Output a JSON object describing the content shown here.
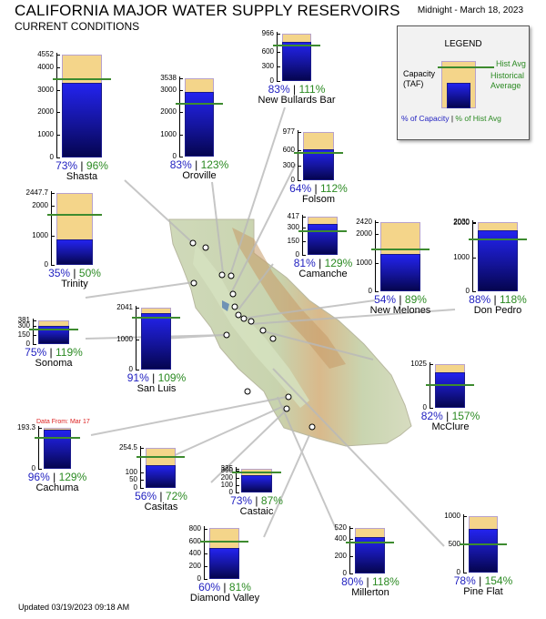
{
  "header": {
    "title": "CALIFORNIA MAJOR WATER SUPPLY RESERVOIRS",
    "subtitle": "CURRENT CONDITIONS",
    "date": "Midnight - March 18, 2023"
  },
  "footer": {
    "updated": "Updated 03/19/2023 09:18 AM"
  },
  "legend": {
    "title": "LEGEND",
    "capacity_label": "Capacity (TAF)",
    "hist_avg_label": "Hist Avg",
    "historical_average_label": "Historical Average",
    "pct_capacity_label": "% of Capacity",
    "separator": "|",
    "pct_hist_label": "% of Hist Avg"
  },
  "colors": {
    "capacity_fill": "#f4d58a",
    "storage_fill": "#1a1aa8",
    "hist_avg_line": "#3d8b2f",
    "pct_capacity_text": "#1f1fc0",
    "pct_hist_text": "#2b8a22"
  },
  "chart_data": {
    "type": "bar",
    "units": "TAF",
    "reservoirs": [
      {
        "name": "Shasta",
        "capacity": 4552,
        "storage": 3323,
        "hist_avg": 3461,
        "pct_capacity": "73%",
        "pct_hist": "96%",
        "ticks": [
          "4552",
          "4000",
          "3000",
          "2000",
          "1000",
          "0"
        ]
      },
      {
        "name": "Oroville",
        "capacity": 3538,
        "storage": 2937,
        "hist_avg": 2388,
        "pct_capacity": "83%",
        "pct_hist": "123%",
        "ticks": [
          "3538",
          "3000",
          "2000",
          "1000",
          "0"
        ]
      },
      {
        "name": "New Bullards Bar",
        "capacity": 966,
        "storage": 802,
        "hist_avg": 722,
        "pct_capacity": "83%",
        "pct_hist": "111%",
        "ticks": [
          "966",
          "600",
          "300",
          "0"
        ]
      },
      {
        "name": "Folsom",
        "capacity": 977,
        "storage": 625,
        "hist_avg": 558,
        "pct_capacity": "64%",
        "pct_hist": "112%",
        "ticks": [
          "977",
          "600",
          "300",
          "0"
        ]
      },
      {
        "name": "Trinity",
        "capacity": 2447.7,
        "storage": 857,
        "hist_avg": 1713,
        "pct_capacity": "35%",
        "pct_hist": "50%",
        "ticks": [
          "2447.7",
          "2000",
          "1000",
          "0"
        ]
      },
      {
        "name": "Camanche",
        "capacity": 417,
        "storage": 338,
        "hist_avg": 262,
        "pct_capacity": "81%",
        "pct_hist": "129%",
        "ticks": [
          "417",
          "300",
          "150",
          "0"
        ]
      },
      {
        "name": "New Melones",
        "capacity": 2420,
        "storage": 1307,
        "hist_avg": 1469,
        "pct_capacity": "54%",
        "pct_hist": "89%",
        "ticks": [
          "2420",
          "2000",
          "1000",
          "0"
        ]
      },
      {
        "name": "Don Pedro",
        "capacity": 2030,
        "storage": 1786,
        "hist_avg": 1514,
        "pct_capacity": "88%",
        "pct_hist": "118%",
        "ticks": [
          "2030",
          "2000",
          "1000",
          "0"
        ]
      },
      {
        "name": "Sonoma",
        "capacity": 381,
        "storage": 286,
        "hist_avg": 240,
        "pct_capacity": "75%",
        "pct_hist": "119%",
        "ticks": [
          "381",
          "300",
          "150",
          "0"
        ]
      },
      {
        "name": "San Luis",
        "capacity": 2041,
        "storage": 1857,
        "hist_avg": 1704,
        "pct_capacity": "91%",
        "pct_hist": "109%",
        "ticks": [
          "2041",
          "1000",
          "0"
        ]
      },
      {
        "name": "McClure",
        "capacity": 1025,
        "storage": 841,
        "hist_avg": 535,
        "pct_capacity": "82%",
        "pct_hist": "157%",
        "ticks": [
          "1025",
          "0"
        ]
      },
      {
        "name": "Cachuma",
        "capacity": 193.3,
        "storage": 186,
        "hist_avg": 144,
        "pct_capacity": "96%",
        "pct_hist": "129%",
        "ticks": [
          "193.3",
          "0"
        ],
        "note": "Data From: Mar 17"
      },
      {
        "name": "Casitas",
        "capacity": 254.5,
        "storage": 143,
        "hist_avg": 198,
        "pct_capacity": "56%",
        "pct_hist": "72%",
        "ticks": [
          "254.5",
          "100",
          "50",
          "0"
        ]
      },
      {
        "name": "Castaic",
        "capacity": 325,
        "storage": 237,
        "hist_avg": 273,
        "pct_capacity": "73%",
        "pct_hist": "87%",
        "ticks": [
          "325",
          "300",
          "200",
          "100",
          "0"
        ]
      },
      {
        "name": "Diamond Valley",
        "capacity": 810,
        "storage": 486,
        "hist_avg": 600,
        "pct_capacity": "60%",
        "pct_hist": "81%",
        "ticks": [
          "800",
          "600",
          "400",
          "200",
          "0"
        ]
      },
      {
        "name": "Millerton",
        "capacity": 520,
        "storage": 416,
        "hist_avg": 352,
        "pct_capacity": "80%",
        "pct_hist": "118%",
        "ticks": [
          "520",
          "400",
          "200",
          "0"
        ]
      },
      {
        "name": "Pine Flat",
        "capacity": 1000,
        "storage": 780,
        "hist_avg": 506,
        "pct_capacity": "78%",
        "pct_hist": "154%",
        "ticks": [
          "1000",
          "500",
          "0"
        ]
      }
    ]
  }
}
